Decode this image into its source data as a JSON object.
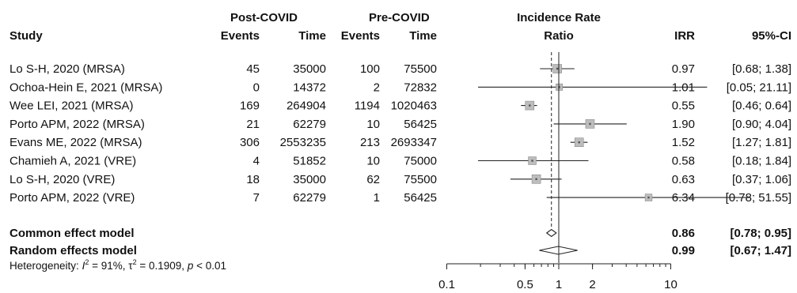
{
  "chart_data": {
    "type": "forest",
    "headers": {
      "group1": "Post-COVID",
      "group2": "Pre-COVID",
      "study": "Study",
      "events1": "Events",
      "time1": "Time",
      "events2": "Events",
      "time2": "Time",
      "irr_title_line1": "Incidence Rate",
      "irr_title_line2": "Ratio",
      "irr": "IRR",
      "ci": "95%-CI"
    },
    "studies": [
      {
        "study": "Lo S-H, 2020 (MRSA)",
        "events1": "45",
        "time1": "35000",
        "events2": "100",
        "time2": "75500",
        "irr": 0.97,
        "lo": 0.68,
        "hi": 1.38,
        "irr_text": "0.97",
        "ci_text": "[0.68; 1.38]",
        "weight": 1.0
      },
      {
        "study": "Ochoa-Hein E, 2021 (MRSA)",
        "events1": "0",
        "time1": "14372",
        "events2": "2",
        "time2": "72832",
        "irr": 1.01,
        "lo": 0.05,
        "hi": 21.11,
        "irr_text": "1.01",
        "ci_text": "[0.05; 21.11]",
        "weight": 0.75
      },
      {
        "study": "Wee LEI, 2021 (MRSA)",
        "events1": "169",
        "time1": "264904",
        "events2": "1194",
        "time2": "1020463",
        "irr": 0.55,
        "lo": 0.46,
        "hi": 0.64,
        "irr_text": "0.55",
        "ci_text": "[0.46; 0.64]",
        "weight": 1.0
      },
      {
        "study": "Porto APM, 2022 (MRSA)",
        "events1": "21",
        "time1": "62279",
        "events2": "10",
        "time2": "56425",
        "irr": 1.9,
        "lo": 0.9,
        "hi": 4.04,
        "irr_text": "1.90",
        "ci_text": "[0.90; 4.04]",
        "weight": 1.0
      },
      {
        "study": "Evans ME, 2022 (MRSA)",
        "events1": "306",
        "time1": "2553235",
        "events2": "213",
        "time2": "2693347",
        "irr": 1.52,
        "lo": 1.27,
        "hi": 1.81,
        "irr_text": "1.52",
        "ci_text": "[1.27; 1.81]",
        "weight": 1.0
      },
      {
        "study": "Chamieh A, 2021 (VRE)",
        "events1": "4",
        "time1": "51852",
        "events2": "10",
        "time2": "75000",
        "irr": 0.58,
        "lo": 0.18,
        "hi": 1.84,
        "irr_text": "0.58",
        "ci_text": "[0.18; 1.84]",
        "weight": 0.9
      },
      {
        "study": "Lo S-H, 2020 (VRE)",
        "events1": "18",
        "time1": "35000",
        "events2": "62",
        "time2": "75500",
        "irr": 0.63,
        "lo": 0.37,
        "hi": 1.06,
        "irr_text": "0.63",
        "ci_text": "[0.37; 1.06]",
        "weight": 1.0
      },
      {
        "study": "Porto APM, 2022 (VRE)",
        "events1": "7",
        "time1": "62279",
        "events2": "1",
        "time2": "56425",
        "irr": 6.34,
        "lo": 0.78,
        "hi": 51.55,
        "irr_text": "6.34",
        "ci_text": "[0.78; 51.55]",
        "weight": 0.8
      }
    ],
    "common": {
      "label": "Common effect model",
      "irr": 0.86,
      "lo": 0.78,
      "hi": 0.95,
      "irr_text": "0.86",
      "ci_text": "[0.78; 0.95]"
    },
    "random": {
      "label": "Random effects model",
      "irr": 0.99,
      "lo": 0.67,
      "hi": 1.47,
      "irr_text": "0.99",
      "ci_text": "[0.67; 1.47]"
    },
    "heterogeneity": {
      "prefix": "Heterogeneity: ",
      "i2_symbol": "I",
      "i2_sup": "2",
      "i2_value": " = 91%, ",
      "tau_symbol": "τ",
      "tau_sup": "2",
      "tau_value": " = 0.1909, ",
      "p_symbol": "p",
      "p_value": " < 0.01"
    },
    "x_axis": {
      "scale": "log",
      "ticks": [
        0.1,
        0.5,
        1,
        2,
        10
      ],
      "tick_labels": [
        "0.1",
        "0.5",
        "1",
        "2",
        "10"
      ],
      "xlim": [
        0.1,
        10
      ],
      "reference_line": 1
    },
    "colors": {
      "square": "#bdbdbd",
      "square_edge": "#8a8a8a",
      "line": "#222222",
      "text": "#111111"
    }
  }
}
